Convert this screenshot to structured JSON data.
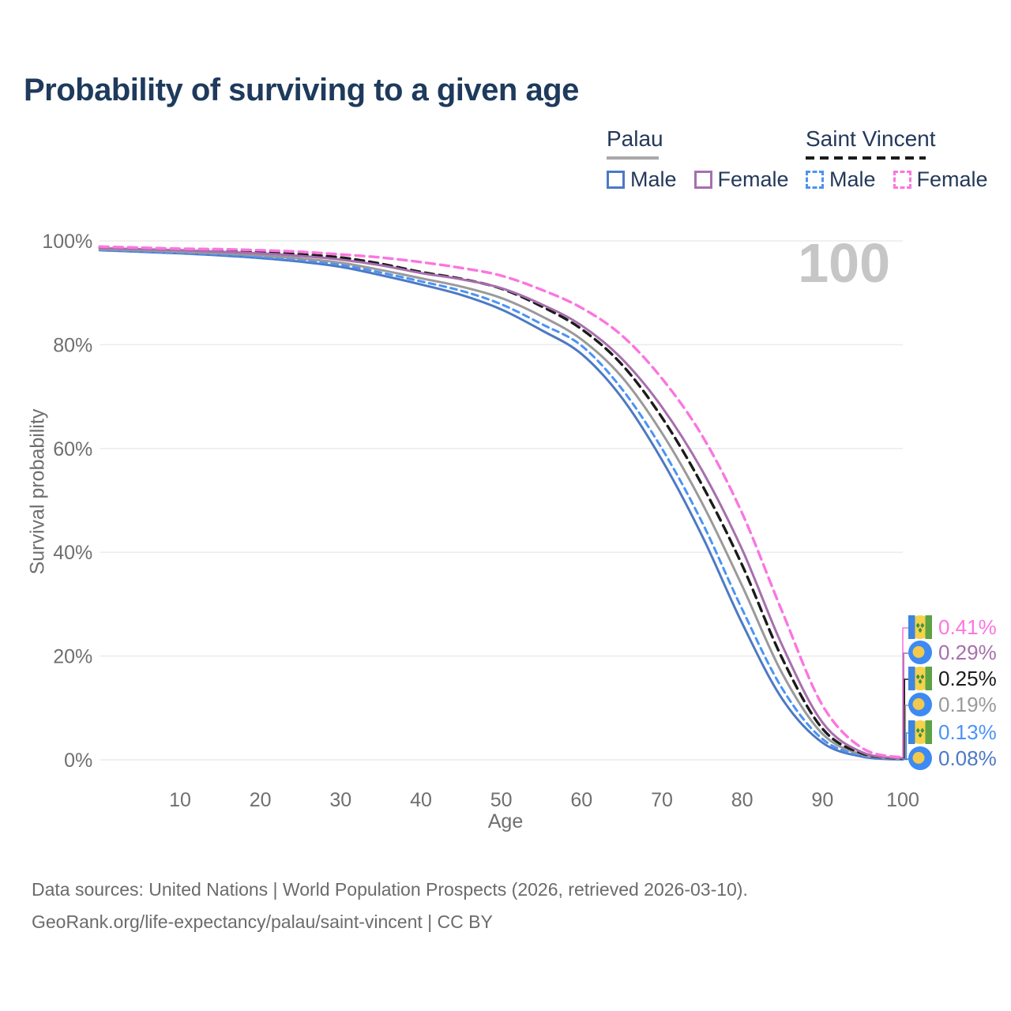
{
  "title": "Probability of surviving to a given age",
  "watermark": "100",
  "legend": {
    "groups": [
      {
        "name": "Palau",
        "line_style": "solid",
        "underline_color": "#a9a9a9",
        "items": [
          {
            "label": "Male",
            "color": "#4d79c5"
          },
          {
            "label": "Female",
            "color": "#a76fae"
          }
        ]
      },
      {
        "name": "Saint Vincent",
        "line_style": "dashed",
        "underline_color": "#1b1b1b",
        "items": [
          {
            "label": "Male",
            "color": "#4b93f5"
          },
          {
            "label": "Female",
            "color": "#fb76df"
          }
        ]
      }
    ]
  },
  "chart_data": {
    "type": "line",
    "title": "Probability of surviving to a given age",
    "xlabel": "Age",
    "ylabel": "Survival probability",
    "xlim": [
      0,
      100
    ],
    "ylim": [
      0,
      100
    ],
    "x_ticks": [
      10,
      20,
      30,
      40,
      50,
      60,
      70,
      80,
      90,
      100
    ],
    "y_ticks": [
      0,
      20,
      40,
      60,
      80,
      100
    ],
    "y_tick_suffix": "%",
    "grid": true,
    "legend_position": "top-right",
    "ages": [
      0,
      5,
      10,
      15,
      20,
      25,
      30,
      35,
      40,
      45,
      50,
      55,
      60,
      65,
      70,
      75,
      80,
      85,
      90,
      95,
      100
    ],
    "series": [
      {
        "name": "Saint Vincent Female",
        "color": "#fb76df",
        "dash": "11,7",
        "width": 3.4,
        "values": [
          98.9,
          98.7,
          98.5,
          98.4,
          98.2,
          97.9,
          97.4,
          96.8,
          95.9,
          94.8,
          93.3,
          90.6,
          87.1,
          81.8,
          73.5,
          62.5,
          47.5,
          28.5,
          10.5,
          2.2,
          0.41
        ]
      },
      {
        "name": "Palau Female",
        "color": "#a76fae",
        "dash": null,
        "width": 3,
        "values": [
          98.6,
          98.4,
          98.2,
          97.9,
          97.6,
          97.1,
          96.4,
          95.3,
          93.8,
          92.6,
          90.9,
          87.8,
          83.7,
          77.3,
          68.0,
          55.8,
          40.5,
          22.0,
          7.2,
          1.4,
          0.29
        ]
      },
      {
        "name": "Saint Vincent Both sexes",
        "color": "#1b1b1b",
        "dash": "11,7",
        "width": 3.4,
        "values": [
          98.7,
          98.5,
          98.3,
          98.1,
          97.8,
          97.4,
          96.8,
          95.6,
          94.0,
          92.7,
          90.8,
          87.4,
          83.0,
          76.2,
          66.0,
          53.0,
          37.5,
          19.5,
          6.0,
          1.2,
          0.25
        ]
      },
      {
        "name": "Palau Both sexes",
        "color": "#9a9a9a",
        "dash": null,
        "width": 3,
        "values": [
          98.4,
          98.2,
          97.9,
          97.6,
          97.2,
          96.6,
          95.8,
          94.4,
          92.8,
          91.2,
          89.0,
          85.5,
          81.0,
          73.8,
          63.0,
          49.5,
          33.5,
          16.6,
          5.0,
          1.0,
          0.19
        ]
      },
      {
        "name": "Saint Vincent Male",
        "color": "#4b93f5",
        "dash": "8,6",
        "width": 3,
        "values": [
          98.3,
          98.0,
          97.7,
          97.4,
          96.9,
          96.3,
          95.4,
          93.9,
          92.2,
          90.4,
          87.8,
          84.0,
          79.8,
          71.5,
          60.0,
          45.8,
          29.0,
          13.7,
          4.0,
          0.8,
          0.13
        ]
      },
      {
        "name": "Palau Male",
        "color": "#4d79c5",
        "dash": null,
        "width": 3,
        "values": [
          98.2,
          97.9,
          97.6,
          97.2,
          96.7,
          96.0,
          95.0,
          93.4,
          91.6,
          89.6,
          86.8,
          82.8,
          78.2,
          69.8,
          57.8,
          43.2,
          26.3,
          11.7,
          3.3,
          0.6,
          0.08
        ]
      }
    ]
  },
  "endpoint_labels": [
    {
      "value": "0.41%",
      "color": "#fb76df",
      "flag": "saint-vincent"
    },
    {
      "value": "0.29%",
      "color": "#a76fae",
      "flag": "palau"
    },
    {
      "value": "0.25%",
      "color": "#1b1b1b",
      "flag": "saint-vincent"
    },
    {
      "value": "0.19%",
      "color": "#9a9a9a",
      "flag": "palau"
    },
    {
      "value": "0.13%",
      "color": "#4b93f5",
      "flag": "saint-vincent"
    },
    {
      "value": "0.08%",
      "color": "#4d79c5",
      "flag": "palau"
    }
  ],
  "footer": {
    "line1": "Data sources: United Nations | World Population Prospects (2026, retrieved 2026-03-10).",
    "line2": "GeoRank.org/life-expectancy/palau/saint-vincent | CC BY"
  }
}
